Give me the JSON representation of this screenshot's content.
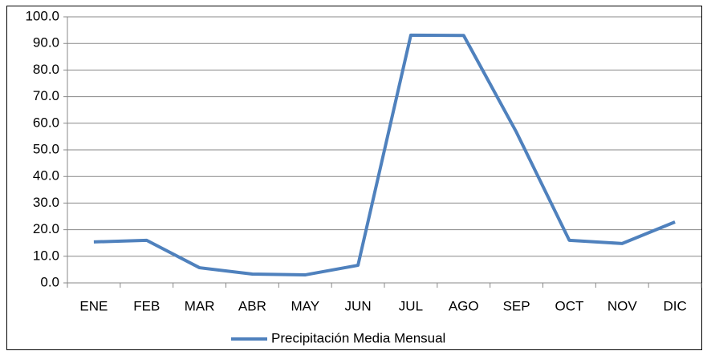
{
  "chart_data": {
    "type": "line",
    "categories": [
      "ENE",
      "FEB",
      "MAR",
      "ABR",
      "MAY",
      "JUN",
      "JUL",
      "AGO",
      "SEP",
      "OCT",
      "NOV",
      "DIC"
    ],
    "series": [
      {
        "name": "Precipitación Media Mensual",
        "color": "#4f81bd",
        "values": [
          15.4,
          16.0,
          5.7,
          3.3,
          3.0,
          6.6,
          93.1,
          93.0,
          56.6,
          16.0,
          14.8,
          22.9
        ]
      }
    ],
    "ylim": [
      0,
      100
    ],
    "yticks": [
      {
        "value": 0,
        "label": "0.0"
      },
      {
        "value": 10,
        "label": "10.0"
      },
      {
        "value": 20,
        "label": "20.0"
      },
      {
        "value": 30,
        "label": "30.0"
      },
      {
        "value": 40,
        "label": "40.0"
      },
      {
        "value": 50,
        "label": "50.0"
      },
      {
        "value": 60,
        "label": "60.0"
      },
      {
        "value": 70,
        "label": "70.0"
      },
      {
        "value": 80,
        "label": "80.0"
      },
      {
        "value": 90,
        "label": "90.0"
      },
      {
        "value": 100,
        "label": "100.0"
      }
    ],
    "grid": true,
    "legend": "bottom"
  }
}
